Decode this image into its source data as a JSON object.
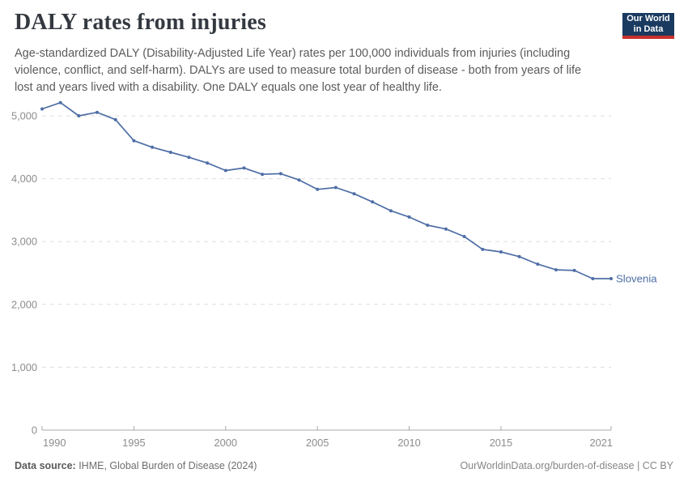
{
  "header": {
    "title": "DALY rates from injuries",
    "subtitle_lines": [
      "Age-standardized DALY (Disability-Adjusted Life Year) rates per 100,000 individuals from injuries (including",
      "violence, conflict, and self-harm). DALYs are used to measure total burden of disease - both from years of life",
      "lost and years lived with a disability. One DALY equals one lost year of healthy life."
    ],
    "logo": {
      "line1": "Our World",
      "line2": "in Data",
      "bg_color": "#1a3a60",
      "stripe_color": "#c9302c"
    }
  },
  "chart_data": {
    "type": "line",
    "title": "DALY rates from injuries",
    "xlabel": "",
    "ylabel": "",
    "x": [
      1990,
      1991,
      1992,
      1993,
      1994,
      1995,
      1996,
      1997,
      1998,
      1999,
      2000,
      2001,
      2002,
      2003,
      2004,
      2005,
      2006,
      2007,
      2008,
      2009,
      2010,
      2011,
      2012,
      2013,
      2014,
      2015,
      2016,
      2017,
      2018,
      2019,
      2020,
      2021
    ],
    "series": [
      {
        "name": "Slovenia",
        "color": "#4e6ea6",
        "values": [
          5110,
          5210,
          5000,
          5055,
          4940,
          4605,
          4500,
          4420,
          4340,
          4250,
          4130,
          4170,
          4070,
          4080,
          3980,
          3830,
          3860,
          3760,
          3630,
          3490,
          3390,
          3260,
          3200,
          3080,
          2875,
          2835,
          2760,
          2640,
          2550,
          2540,
          2410,
          2410
        ]
      }
    ],
    "end_label": "Slovenia",
    "xlim": [
      1990,
      2021
    ],
    "ylim": [
      0,
      5400
    ],
    "yticks": [
      0,
      1000,
      2000,
      3000,
      4000,
      5000
    ],
    "ytick_labels": [
      "0",
      "1,000",
      "2,000",
      "3,000",
      "4,000",
      "5,000"
    ],
    "xticks": [
      1990,
      1995,
      2000,
      2005,
      2010,
      2015,
      2021
    ],
    "grid": "horizontal-dashed",
    "legend_position": "end-of-line",
    "colors": {
      "gridline": "#dedede",
      "axis_line": "#a8a8a8",
      "tick_text": "#8c8c8c"
    }
  },
  "footer": {
    "source_label": "Data source:",
    "source_text": " IHME, Global Burden of Disease (2024)",
    "right_text": "OurWorldinData.org/burden-of-disease | CC BY"
  }
}
